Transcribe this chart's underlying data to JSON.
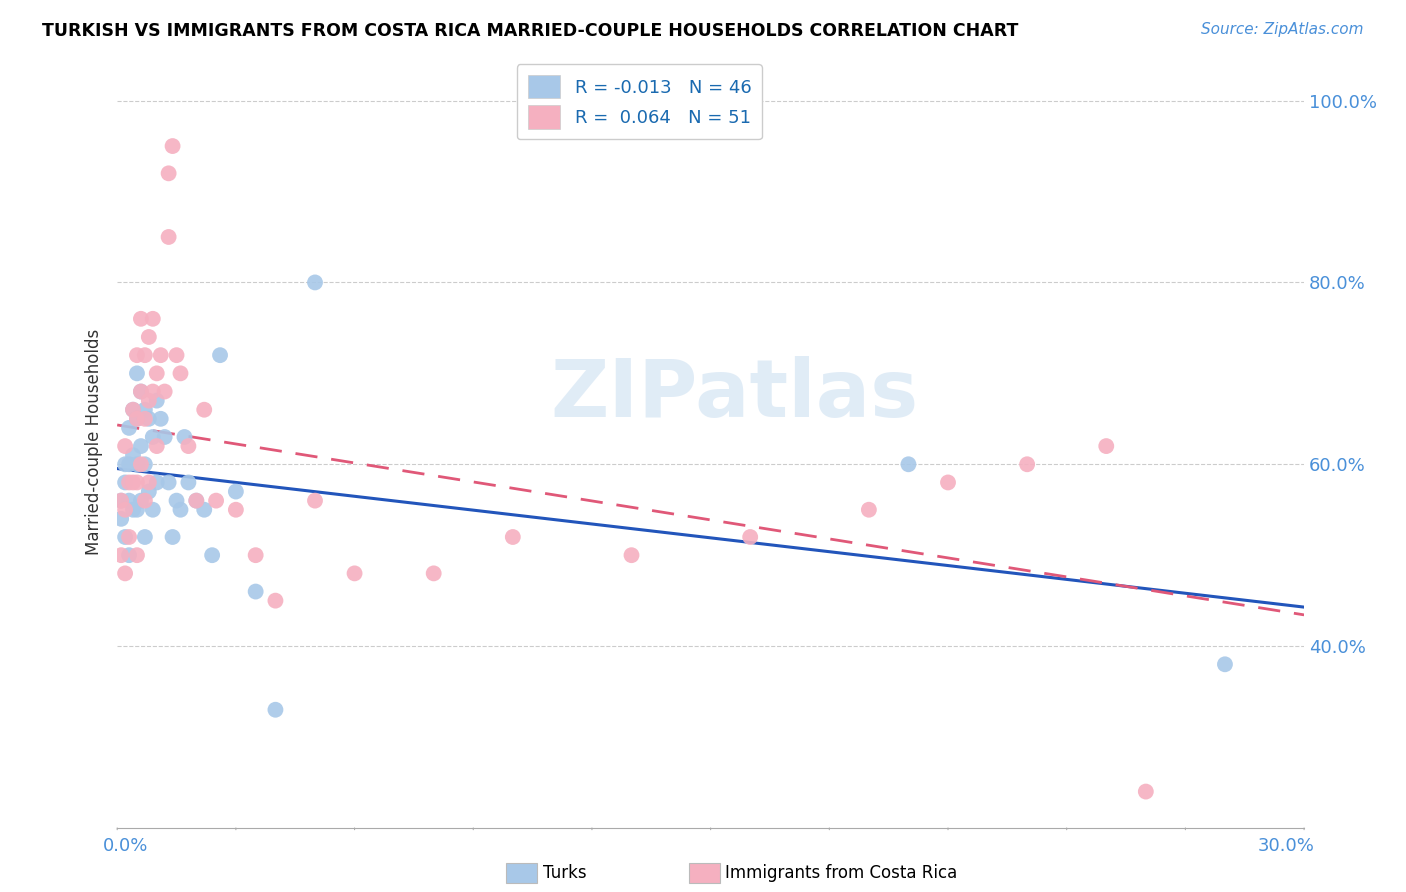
{
  "title": "TURKISH VS IMMIGRANTS FROM COSTA RICA MARRIED-COUPLE HOUSEHOLDS CORRELATION CHART",
  "source": "Source: ZipAtlas.com",
  "ylabel": "Married-couple Households",
  "xlim": [
    0.0,
    0.3
  ],
  "ylim": [
    0.2,
    1.05
  ],
  "turks_R": -0.013,
  "turks_N": 46,
  "costa_rica_R": 0.064,
  "costa_rica_N": 51,
  "turks_color": "#a8c8e8",
  "costa_rica_color": "#f5b0c0",
  "turks_line_color": "#2255bb",
  "costa_rica_line_color": "#e05878",
  "watermark_text": "ZIPatlas",
  "turks_x": [
    0.001,
    0.001,
    0.002,
    0.002,
    0.002,
    0.003,
    0.003,
    0.003,
    0.003,
    0.004,
    0.004,
    0.004,
    0.005,
    0.005,
    0.005,
    0.005,
    0.006,
    0.006,
    0.006,
    0.007,
    0.007,
    0.007,
    0.008,
    0.008,
    0.009,
    0.009,
    0.01,
    0.01,
    0.011,
    0.012,
    0.013,
    0.014,
    0.015,
    0.016,
    0.017,
    0.018,
    0.02,
    0.022,
    0.024,
    0.026,
    0.03,
    0.035,
    0.04,
    0.05,
    0.2,
    0.28
  ],
  "turks_y": [
    0.56,
    0.54,
    0.6,
    0.58,
    0.52,
    0.64,
    0.6,
    0.56,
    0.5,
    0.66,
    0.61,
    0.55,
    0.7,
    0.65,
    0.6,
    0.55,
    0.68,
    0.62,
    0.56,
    0.66,
    0.6,
    0.52,
    0.65,
    0.57,
    0.63,
    0.55,
    0.67,
    0.58,
    0.65,
    0.63,
    0.58,
    0.52,
    0.56,
    0.55,
    0.63,
    0.58,
    0.56,
    0.55,
    0.5,
    0.72,
    0.57,
    0.46,
    0.33,
    0.8,
    0.6,
    0.38
  ],
  "costa_rica_x": [
    0.001,
    0.001,
    0.002,
    0.002,
    0.002,
    0.003,
    0.003,
    0.004,
    0.004,
    0.005,
    0.005,
    0.005,
    0.005,
    0.006,
    0.006,
    0.006,
    0.007,
    0.007,
    0.007,
    0.008,
    0.008,
    0.008,
    0.009,
    0.009,
    0.01,
    0.01,
    0.011,
    0.012,
    0.013,
    0.013,
    0.014,
    0.015,
    0.016,
    0.018,
    0.02,
    0.022,
    0.025,
    0.03,
    0.035,
    0.04,
    0.05,
    0.06,
    0.08,
    0.1,
    0.13,
    0.16,
    0.19,
    0.21,
    0.23,
    0.25,
    0.26
  ],
  "costa_rica_y": [
    0.56,
    0.5,
    0.62,
    0.55,
    0.48,
    0.58,
    0.52,
    0.66,
    0.58,
    0.72,
    0.65,
    0.58,
    0.5,
    0.76,
    0.68,
    0.6,
    0.72,
    0.65,
    0.56,
    0.74,
    0.67,
    0.58,
    0.76,
    0.68,
    0.7,
    0.62,
    0.72,
    0.68,
    0.92,
    0.85,
    0.95,
    0.72,
    0.7,
    0.62,
    0.56,
    0.66,
    0.56,
    0.55,
    0.5,
    0.45,
    0.56,
    0.48,
    0.48,
    0.52,
    0.5,
    0.52,
    0.55,
    0.58,
    0.6,
    0.62,
    0.24
  ],
  "ytick_vals": [
    0.4,
    0.6,
    0.8,
    1.0
  ],
  "ytick_labels": [
    "40.0%",
    "60.0%",
    "80.0%",
    "100.0%"
  ]
}
